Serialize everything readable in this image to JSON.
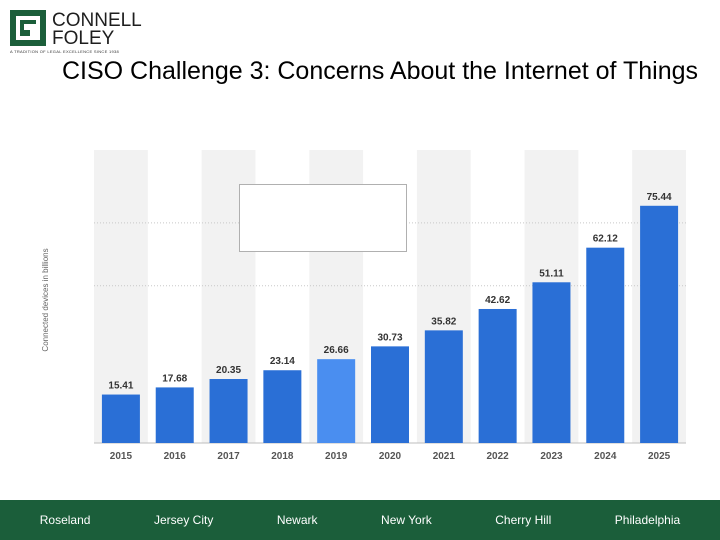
{
  "logo": {
    "line1": "CONNELL",
    "line2": "FOLEY",
    "tagline": "A TRADITION OF LEGAL EXCELLENCE SINCE 1938",
    "colors": {
      "green": "#1b5e3a",
      "gray": "#8a8a8a"
    }
  },
  "title": "CISO Challenge 3: Concerns About the Internet of Things",
  "chart_data": {
    "type": "bar",
    "categories": [
      "2015",
      "2016",
      "2017",
      "2018",
      "2019",
      "2020",
      "2021",
      "2022",
      "2023",
      "2024",
      "2025"
    ],
    "values": [
      15.41,
      17.68,
      20.35,
      23.14,
      26.66,
      30.73,
      35.82,
      42.62,
      51.11,
      62.12,
      75.44
    ],
    "data_labels": [
      "15.41",
      "17.68",
      "20.35",
      "23.14",
      "26.66",
      "30.73",
      "35.82",
      "42.62",
      "51.11",
      "62.12",
      "75.44"
    ],
    "ylabel": "Connected devices in billions",
    "xlabel": "",
    "ylim": [
      0,
      90
    ],
    "highlight_index": 4,
    "grid": true,
    "colors": {
      "bar": "#2a6fd6",
      "highlight": "#4a8ef0",
      "band": "#f2f2f2",
      "grid": "#c8c8c8"
    }
  },
  "footer": {
    "locations": [
      "Roseland",
      "Jersey City",
      "Newark",
      "New York",
      "Cherry Hill",
      "Philadelphia"
    ],
    "color": "#1b5e3a"
  }
}
